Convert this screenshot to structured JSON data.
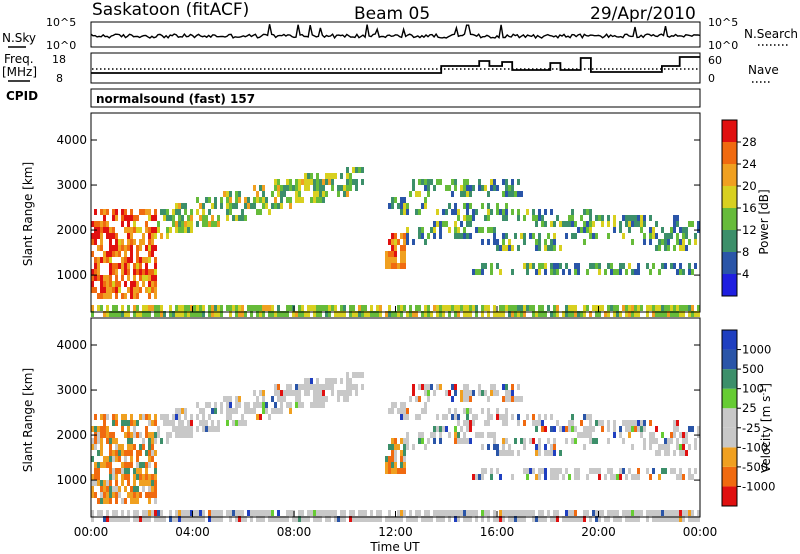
{
  "header": {
    "radar": "Saskatoon (fitACF)",
    "beam": "Beam 05",
    "date": "29/Apr/2010"
  },
  "noise_panel": {
    "left_label": "N.Sky",
    "right_label": "N.Search",
    "left_ticks": [
      "10^5",
      "10^0"
    ],
    "right_ticks": [
      "10^5",
      "10^0"
    ]
  },
  "freq_panel": {
    "left_label_line1": "Freq.",
    "left_label_line2": "[MHz]",
    "right_label": "Nave",
    "left_ticks": [
      "18",
      "8"
    ],
    "right_ticks": [
      "60",
      "0"
    ]
  },
  "cpid": {
    "label": "CPID",
    "value": "normalsound (fast) 157"
  },
  "x_axis": {
    "label": "Time UT",
    "ticks": [
      "00:00",
      "04:00",
      "08:00",
      "12:00",
      "16:00",
      "20:00",
      "00:00"
    ]
  },
  "colors": {
    "power_scale": [
      "#1f1fe0",
      "#2a55a8",
      "#3c8f6a",
      "#66bb3a",
      "#d8d020",
      "#f0a020",
      "#f06a10",
      "#e01010"
    ],
    "velocity_scale": [
      "#e01010",
      "#f06a10",
      "#f0a020",
      "#c8c8c8",
      "#c8c8c8",
      "#66cc33",
      "#3c8f6a",
      "#2a55a8",
      "#1f3fc0"
    ]
  },
  "chart_data": [
    {
      "type": "heatmap",
      "title": "Power",
      "xlabel": "Time UT",
      "ylabel": "Slant Range [km]",
      "x_range_hours": [
        0,
        24
      ],
      "ylim": [
        180,
        4600
      ],
      "yticks": [
        "4000",
        "3000",
        "2000",
        "1000"
      ],
      "colorbar": {
        "label": "Power [dB]",
        "ticks": [
          "28",
          "24",
          "20",
          "16",
          "12",
          "8",
          "4"
        ]
      },
      "regions": [
        {
          "name": "near-range strong echoes",
          "t_start": 0.0,
          "t_end": 2.5,
          "range_km": [
            500,
            2500
          ],
          "level": "high"
        },
        {
          "name": "ground scatter band",
          "t_start": 0.0,
          "t_end": 24.0,
          "range_km": [
            180,
            450
          ],
          "level": "medium"
        },
        {
          "name": "rising arc",
          "t_start": 1.0,
          "t_end": 10.7,
          "range_km": [
            1700,
            3500
          ],
          "level": "medium"
        },
        {
          "name": "evening bands",
          "t_start": 11.5,
          "t_end": 24.0,
          "range_km": [
            900,
            3300
          ],
          "level": "low-medium"
        }
      ]
    },
    {
      "type": "heatmap",
      "title": "Velocity",
      "xlabel": "Time UT",
      "ylabel": "Slant Range [km]",
      "x_range_hours": [
        0,
        24
      ],
      "ylim": [
        180,
        4600
      ],
      "yticks": [
        "4000",
        "3000",
        "2000",
        "1000"
      ],
      "colorbar": {
        "label": "Velocity [m s-1]",
        "ticks": [
          "1000",
          "500",
          "100",
          "25",
          "-25",
          "-100",
          "-500",
          "-1000"
        ]
      }
    }
  ]
}
